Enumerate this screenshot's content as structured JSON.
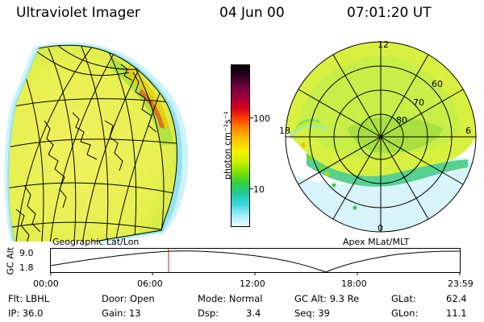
{
  "header": {
    "title": "Ultraviolet Imager",
    "date": "04 Jun 00",
    "time": "07:01:20 UT"
  },
  "colorbar": {
    "unit_label": "photon cm⁻²s⁻¹",
    "ticks": [
      "100",
      "10"
    ],
    "colors": [
      "#000000",
      "#300020",
      "#700040",
      "#a0003c",
      "#d80018",
      "#ff4000",
      "#ff9000",
      "#f8c800",
      "#f8f000",
      "#c8f000",
      "#78e000",
      "#30d040",
      "#20c8a0",
      "#40d8e0",
      "#a0eef8",
      "#f0f8ff"
    ]
  },
  "left_panel": {
    "caption": "Geographic Lat/Lon"
  },
  "right_panel": {
    "caption": "Apex MLat/MLT",
    "mlt_labels": [
      "12",
      "18",
      "6",
      "0"
    ],
    "mlat_labels": [
      "60",
      "70",
      "80"
    ]
  },
  "timeline": {
    "ylabel": "GC Alt",
    "yticks": [
      "9.0",
      "1.8"
    ],
    "xticks": [
      "00:00",
      "06:00",
      "12:00",
      "18:00",
      "23:59"
    ],
    "marker_color": "#d02020"
  },
  "info": {
    "flt": "Flt: LBHL",
    "ip": "IP: 36.0",
    "door": "Door: Open",
    "gain": "Gain: 13",
    "mode": "Mode: Normal",
    "dsp_label": "Dsp:",
    "dsp_value": "3.4",
    "gc_alt": "GC Alt: 9.3 Re",
    "seq": "Seq: 39",
    "glat_label": "GLat:",
    "glat_value": "62.4",
    "glon_label": "GLon:",
    "glon_value": "11.1"
  }
}
